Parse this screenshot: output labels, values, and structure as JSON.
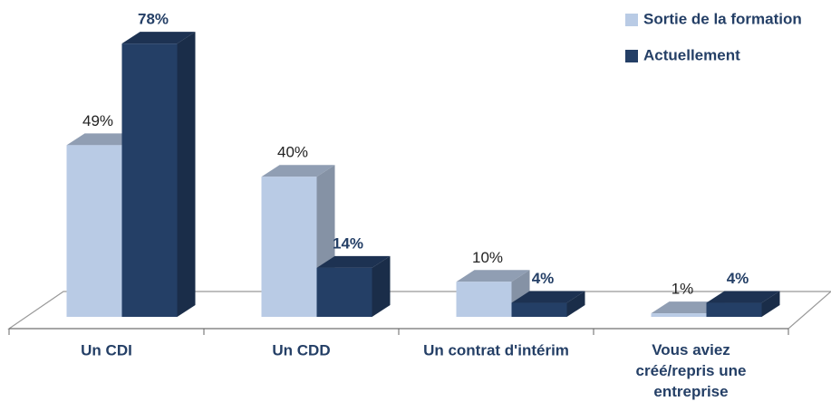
{
  "chart_data": {
    "type": "bar3d",
    "categories": [
      "Un CDI",
      "Un CDD",
      "Un contrat d'intérim",
      "Vous aviez créé/repris une entreprise"
    ],
    "series": [
      {
        "name": "Sortie de la formation",
        "color": "#b9cbe5",
        "values": [
          49,
          40,
          10,
          1
        ],
        "value_labels": [
          "49%",
          "40%",
          "10%",
          "1%"
        ]
      },
      {
        "name": "Actuellement",
        "color": "#243f66",
        "values": [
          78,
          14,
          4,
          4
        ],
        "value_labels": [
          "78%",
          "14%",
          "4%",
          "4%"
        ]
      }
    ],
    "legend": "top-right"
  }
}
